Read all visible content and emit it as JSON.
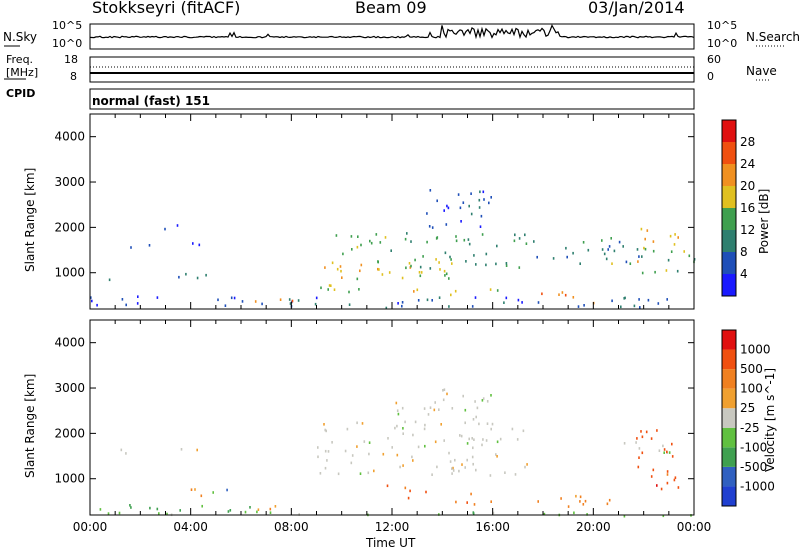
{
  "header": {
    "station": "Stokkseyri (fitACF)",
    "beam": "Beam 09",
    "date": "03/Jan/2014"
  },
  "noise_panel": {
    "left_label": "N.Sky",
    "left_ticks": [
      "10^5",
      "10^0"
    ],
    "right_ticks": [
      "10^5",
      "10^0"
    ],
    "right_label": "N.Search"
  },
  "freq_panel": {
    "left_label_1": "Freq.",
    "left_label_2": "[MHz]",
    "left_ticks": [
      "18",
      "8"
    ],
    "right_ticks": [
      "60",
      "0"
    ],
    "right_label": "Nave",
    "cpid_label": "CPID",
    "cpid_value": "normal (fast) 151"
  },
  "colors": {
    "power_scale": [
      "#1a1aff",
      "#1f4fb8",
      "#2f7f6f",
      "#3f9f4f",
      "#e0c020",
      "#f09020",
      "#f05010",
      "#e01010"
    ],
    "velocity_scale": [
      "#e01010",
      "#f05010",
      "#f08020",
      "#f0a030",
      "#c8c8c0",
      "#60c040",
      "#3fa050",
      "#3060c0",
      "#2040d0"
    ]
  },
  "chart_data": [
    {
      "type": "heatmap",
      "name": "power",
      "ylabel": "Slant Range [km]",
      "yticks": [
        "1000",
        "2000",
        "3000",
        "4000"
      ],
      "ylim": [
        200,
        4500
      ],
      "xlim": [
        0,
        24
      ],
      "colorbar_label": "Power [dB]",
      "colorbar_ticks": [
        "4",
        "8",
        "12",
        "16",
        "20",
        "24",
        "28"
      ],
      "colorbar_range": [
        0,
        32
      ],
      "regions": [
        {
          "t0": 0.0,
          "t1": 24.0,
          "r0": 250,
          "r1": 500,
          "level": 6
        },
        {
          "t0": 0.5,
          "t1": 1.5,
          "r0": 800,
          "r1": 900,
          "level": 7
        },
        {
          "t0": 1.0,
          "t1": 2.5,
          "r0": 1550,
          "r1": 1700,
          "level": 6
        },
        {
          "t0": 2.5,
          "t1": 5.0,
          "r0": 1600,
          "r1": 1700,
          "level": 5
        },
        {
          "t0": 3.0,
          "t1": 5.5,
          "r0": 800,
          "r1": 1000,
          "level": 8
        },
        {
          "t0": 2.5,
          "t1": 3.5,
          "r0": 1950,
          "r1": 2200,
          "level": 5
        },
        {
          "t0": 6.5,
          "t1": 8.5,
          "r0": 350,
          "r1": 500,
          "level": 22
        },
        {
          "t0": 9.0,
          "t1": 13.0,
          "r0": 600,
          "r1": 1300,
          "level": 18
        },
        {
          "t0": 9.5,
          "t1": 12.0,
          "r0": 1300,
          "r1": 1900,
          "level": 13
        },
        {
          "t0": 11.0,
          "t1": 14.5,
          "r0": 900,
          "r1": 1500,
          "level": 16
        },
        {
          "t0": 12.5,
          "t1": 17.5,
          "r0": 1100,
          "r1": 1900,
          "level": 12
        },
        {
          "t0": 13.0,
          "t1": 16.0,
          "r0": 2000,
          "r1": 3000,
          "level": 6
        },
        {
          "t0": 14.0,
          "t1": 16.5,
          "r0": 500,
          "r1": 700,
          "level": 17
        },
        {
          "t0": 17.0,
          "t1": 20.0,
          "r0": 350,
          "r1": 600,
          "level": 24
        },
        {
          "t0": 17.5,
          "t1": 22.0,
          "r0": 1200,
          "r1": 1800,
          "level": 10
        },
        {
          "t0": 20.5,
          "t1": 22.0,
          "r0": 1000,
          "r1": 1300,
          "level": 18
        },
        {
          "t0": 21.8,
          "t1": 23.8,
          "r0": 1400,
          "r1": 2000,
          "level": 20
        },
        {
          "t0": 22.0,
          "t1": 24.0,
          "r0": 1000,
          "r1": 1600,
          "level": 14
        }
      ]
    },
    {
      "type": "heatmap",
      "name": "velocity",
      "ylabel": "Slant Range [km]",
      "yticks": [
        "1000",
        "2000",
        "3000",
        "4000"
      ],
      "ylim": [
        200,
        4500
      ],
      "xlim": [
        0,
        24
      ],
      "xticks": [
        "00:00",
        "04:00",
        "08:00",
        "12:00",
        "16:00",
        "20:00",
        "00:00"
      ],
      "xlabel": "Time UT",
      "colorbar_label": "Velocity [m s^-1]",
      "colorbar_ticks": [
        "1000",
        "500",
        "100",
        "25",
        "-25",
        "-100",
        "-500",
        "-1000"
      ],
      "regions": [
        {
          "t0": 0.0,
          "t1": 6.5,
          "r0": 250,
          "r1": 450,
          "bin": 6
        },
        {
          "t0": 0.5,
          "t1": 1.5,
          "r0": 1550,
          "r1": 1750,
          "bin": 4
        },
        {
          "t0": 2.5,
          "t1": 5.0,
          "r0": 1600,
          "r1": 1700,
          "bin": 4
        },
        {
          "t0": 3.0,
          "t1": 4.5,
          "r0": 650,
          "r1": 900,
          "bin": 2
        },
        {
          "t0": 4.5,
          "t1": 5.5,
          "r0": 550,
          "r1": 800,
          "bin": 6
        },
        {
          "t0": 6.5,
          "t1": 8.5,
          "r0": 300,
          "r1": 450,
          "bin": 3
        },
        {
          "t0": 9.0,
          "t1": 17.5,
          "r0": 1100,
          "r1": 2300,
          "bin": 4
        },
        {
          "t0": 12.0,
          "t1": 16.0,
          "r0": 2100,
          "r1": 3000,
          "bin": 4
        },
        {
          "t0": 11.5,
          "t1": 13.5,
          "r0": 600,
          "r1": 900,
          "bin": 1
        },
        {
          "t0": 14.0,
          "t1": 16.5,
          "r0": 450,
          "r1": 700,
          "bin": 2
        },
        {
          "t0": 17.0,
          "t1": 21.0,
          "r0": 350,
          "r1": 650,
          "bin": 2
        },
        {
          "t0": 21.0,
          "t1": 24.0,
          "r0": 1600,
          "r1": 1900,
          "bin": 4
        },
        {
          "t0": 21.5,
          "t1": 23.5,
          "r0": 800,
          "r1": 2200,
          "bin": 1
        },
        {
          "t0": 0.0,
          "t1": 24.0,
          "r0": 200,
          "r1": 300,
          "bin": 5
        }
      ]
    }
  ]
}
